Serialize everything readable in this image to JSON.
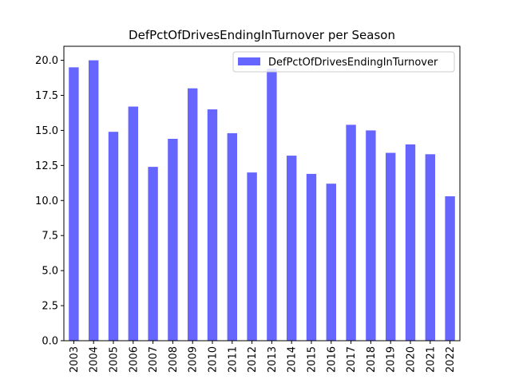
{
  "chart_data": {
    "type": "bar",
    "title": "DefPctOfDrivesEndingInTurnover per Season",
    "xlabel": "",
    "ylabel": "",
    "categories": [
      "2003",
      "2004",
      "2005",
      "2006",
      "2007",
      "2008",
      "2009",
      "2010",
      "2011",
      "2012",
      "2013",
      "2014",
      "2015",
      "2016",
      "2017",
      "2018",
      "2019",
      "2020",
      "2021",
      "2022"
    ],
    "series": [
      {
        "name": "DefPctOfDrivesEndingInTurnover",
        "values": [
          19.5,
          20.0,
          14.9,
          16.7,
          12.4,
          14.4,
          18.0,
          16.5,
          14.8,
          12.0,
          19.4,
          13.2,
          11.9,
          11.2,
          15.4,
          15.0,
          13.4,
          14.0,
          13.3,
          10.3
        ]
      }
    ],
    "ylim": [
      0,
      21.0
    ],
    "yticks": [
      0.0,
      2.5,
      5.0,
      7.5,
      10.0,
      12.5,
      15.0,
      17.5,
      20.0
    ],
    "ytick_labels": [
      "0.0",
      "2.5",
      "5.0",
      "7.5",
      "10.0",
      "12.5",
      "15.0",
      "17.5",
      "20.0"
    ],
    "grid": false,
    "legend_position": "top-right",
    "colors": {
      "bar": "#6666ff",
      "axis": "#000000"
    }
  }
}
